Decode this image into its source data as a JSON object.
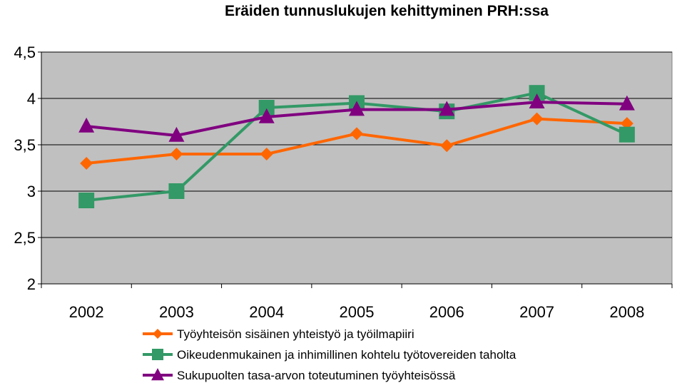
{
  "chart_data": {
    "type": "line",
    "title": "Eräiden tunnuslukujen kehittyminen PRH:ssa",
    "xlabel": "",
    "ylabel": "",
    "x": [
      "2002",
      "2003",
      "2004",
      "2005",
      "2006",
      "2007",
      "2008"
    ],
    "ylim": [
      2,
      4.5
    ],
    "yticks": [
      2,
      2.5,
      3,
      3.5,
      4,
      4.5
    ],
    "ytick_labels": [
      "2",
      "2,5",
      "3",
      "3,5",
      "4",
      "4,5"
    ],
    "grid": "horizontal",
    "plot_background": "#c0c0c0",
    "legend_position": "bottom",
    "series": [
      {
        "name": "Työyhteisön sisäinen yhteistyö ja työilmapiiri",
        "color": "#ff6600",
        "marker": "diamond",
        "values": [
          3.3,
          3.4,
          3.4,
          3.62,
          3.49,
          3.78,
          3.73
        ]
      },
      {
        "name": "Oikeudenmukainen ja inhimillinen kohtelu työtovereiden taholta",
        "color": "#339966",
        "marker": "square",
        "values": [
          2.9,
          3.0,
          3.9,
          3.95,
          3.86,
          4.06,
          3.61
        ]
      },
      {
        "name": "Sukupuolten tasa-arvon toteutuminen työyhteisössä",
        "color": "#800080",
        "marker": "triangle",
        "values": [
          3.7,
          3.6,
          3.8,
          3.88,
          3.88,
          3.96,
          3.94
        ]
      }
    ]
  }
}
